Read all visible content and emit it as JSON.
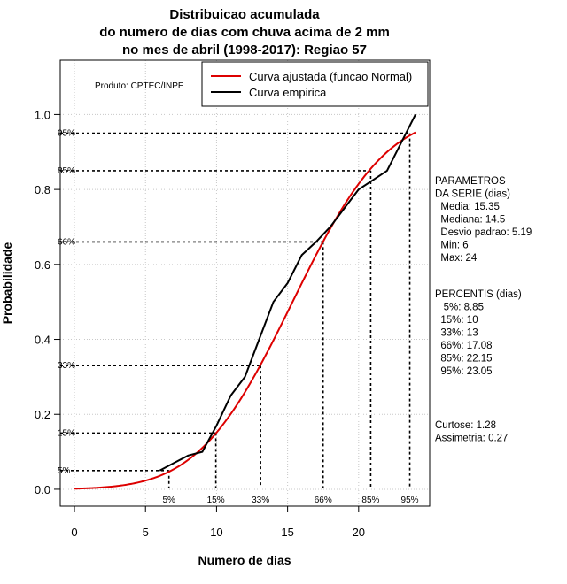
{
  "chart_data": {
    "type": "line",
    "title_lines": [
      "Distribuicao acumulada",
      "do numero de dias com chuva acima de 2 mm",
      "no mes de abril (1998-2017): Regiao 57"
    ],
    "xlabel": "Numero de dias",
    "ylabel": "Probabilidade",
    "xlim": [
      -1,
      25
    ],
    "ylim": [
      -0.045,
      1.145
    ],
    "x_ticks": [
      0,
      5,
      10,
      15,
      20
    ],
    "y_ticks": [
      "0.0",
      "0.2",
      "0.4",
      "0.6",
      "0.8",
      "1.0"
    ],
    "grid": true,
    "producer": "Produto: CPTEC/INPE",
    "legend_position": "top-right",
    "series": [
      {
        "name": "Curva ajustada (funcao Normal)",
        "color": "#dd0000",
        "kind": "normal_cdf",
        "mean": 15.35,
        "sd": 5.19,
        "x_range": [
          0,
          24
        ]
      },
      {
        "name": "Curva empirica",
        "color": "#000000",
        "x": [
          6,
          7,
          8,
          9,
          10,
          11,
          12,
          13,
          14,
          15,
          16,
          17,
          18,
          19,
          20,
          21,
          22,
          23,
          24
        ],
        "y": [
          0.05,
          0.07,
          0.09,
          0.1,
          0.17,
          0.25,
          0.3,
          0.4,
          0.5,
          0.55,
          0.625,
          0.66,
          0.7,
          0.75,
          0.8,
          0.825,
          0.85,
          0.925,
          1.0
        ]
      }
    ],
    "percentile_markers": [
      {
        "label": "5%",
        "p": 0.05,
        "x": 6.65
      },
      {
        "label": "15%",
        "p": 0.15,
        "x": 9.95
      },
      {
        "label": "33%",
        "p": 0.33,
        "x": 13.1
      },
      {
        "label": "66%",
        "p": 0.66,
        "x": 17.5
      },
      {
        "label": "85%",
        "p": 0.85,
        "x": 20.85
      },
      {
        "label": "95%",
        "p": 0.95,
        "x": 23.6
      }
    ]
  },
  "side_panel": {
    "parametros_lines": [
      "PARAMETROS",
      "DA SERIE (dias)",
      "  Media: 15.35",
      "  Mediana: 14.5",
      "  Desvio padrao: 5.19",
      "  Min: 6",
      "  Max: 24"
    ],
    "percentis_lines": [
      "PERCENTIS (dias)",
      "   5%: 8.85",
      "  15%: 10",
      "  33%: 13",
      "  66%: 17.08",
      "  85%: 22.15",
      "  95%: 23.05"
    ],
    "shape_lines": [
      "Curtose: 1.28",
      "Assimetria: 0.27"
    ]
  },
  "colors": {
    "fitted": "#dd0000",
    "empirical": "#000000",
    "grid": "#c8c8c8"
  }
}
